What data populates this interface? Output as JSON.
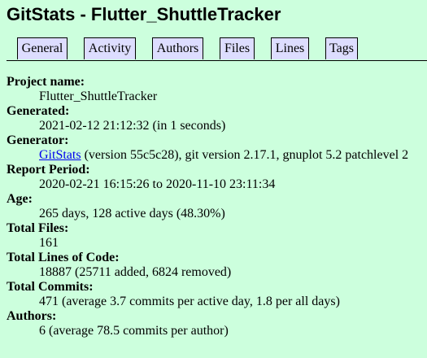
{
  "page": {
    "title": "GitStats - Flutter_ShuttleTracker"
  },
  "nav": {
    "items": [
      {
        "label": "General"
      },
      {
        "label": "Activity"
      },
      {
        "label": "Authors"
      },
      {
        "label": "Files"
      },
      {
        "label": "Lines"
      },
      {
        "label": "Tags"
      }
    ]
  },
  "info": {
    "project_name": {
      "label": "Project name:",
      "value": "Flutter_ShuttleTracker"
    },
    "generated": {
      "label": "Generated:",
      "value": "2021-02-12 21:12:32 (in 1 seconds)"
    },
    "generator": {
      "label": "Generator:",
      "link_text": "GitStats",
      "value_rest": " (version 55c5c28), git version 2.17.1, gnuplot 5.2 patchlevel 2"
    },
    "report_period": {
      "label": "Report Period:",
      "value": "2020-02-21 16:15:26 to 2020-11-10 23:11:34"
    },
    "age": {
      "label": "Age:",
      "value": "265 days, 128 active days (48.30%)"
    },
    "total_files": {
      "label": "Total Files:",
      "value": "161"
    },
    "total_lines": {
      "label": "Total Lines of Code:",
      "value": "18887 (25711 added, 6824 removed)"
    },
    "total_commits": {
      "label": "Total Commits:",
      "value": "471 (average 3.7 commits per active day, 1.8 per all days)"
    },
    "authors": {
      "label": "Authors:",
      "value": "6 (average 78.5 commits per author)"
    }
  }
}
